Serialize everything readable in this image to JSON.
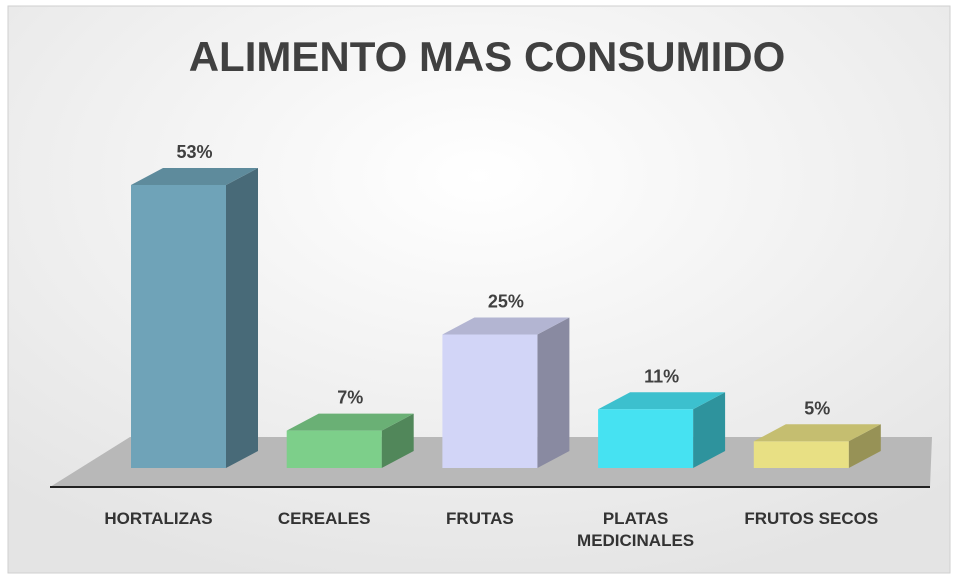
{
  "chart_data": {
    "type": "bar3d",
    "title": "ALIMENTO MAS CONSUMIDO",
    "categories": [
      "HORTALIZAS",
      "CEREALES",
      "FRUTAS",
      "PLATAS MEDICINALES",
      "FRUTOS SECOS"
    ],
    "values": [
      53,
      7,
      25,
      11,
      5
    ],
    "value_labels": [
      "53%",
      "7%",
      "25%",
      "11%",
      "5%"
    ],
    "colors": [
      "#6fa3b8",
      "#7dcf8a",
      "#d2d5f7",
      "#46e2f2",
      "#e8e084"
    ]
  }
}
